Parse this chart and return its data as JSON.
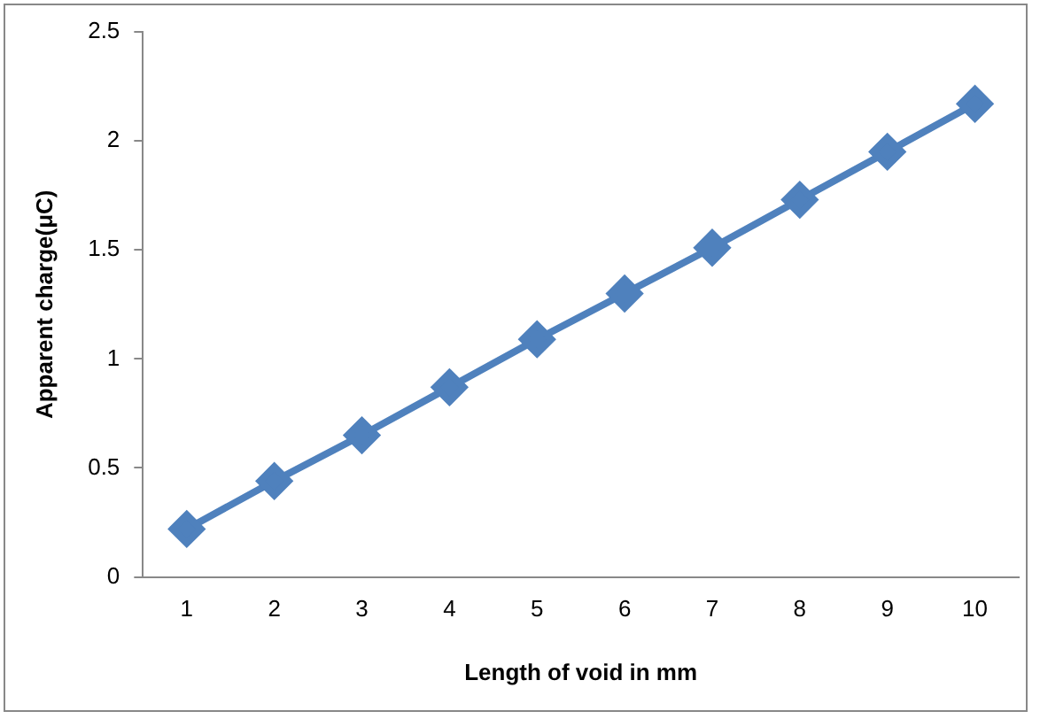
{
  "chart_data": {
    "type": "line",
    "xlabel": "Length of void in mm",
    "ylabel": "Apparent charge(μC)",
    "categories": [
      "1",
      "2",
      "3",
      "4",
      "5",
      "6",
      "7",
      "8",
      "9",
      "10"
    ],
    "series": [
      {
        "color": "#4f81bd",
        "values": [
          0.22,
          0.44,
          0.65,
          0.87,
          1.09,
          1.3,
          1.51,
          1.73,
          1.95,
          2.17
        ]
      }
    ],
    "ylim": [
      0,
      2.5
    ],
    "yticks": [
      0,
      0.5,
      1,
      1.5,
      2,
      2.5
    ],
    "grid": false,
    "legend": false,
    "marker": "diamond",
    "line_style": "solid"
  }
}
